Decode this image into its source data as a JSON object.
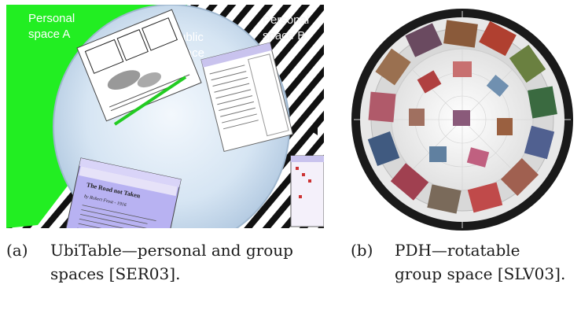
{
  "figure": {
    "panel_a": {
      "labels": {
        "personal_a_line1": "Personal",
        "personal_a_line2": "space A",
        "public_line1": "Public",
        "public_line2": "space",
        "personal_b_line1": "Personal",
        "personal_b_line2": "space B"
      },
      "window_title": "The Road not Taken",
      "window_author": "by Robert Frost - 1916",
      "colors": {
        "personal_a": "#22ee22",
        "public": "#cfe0f0",
        "stripes": "#111111"
      }
    },
    "panel_b": {
      "colors": {
        "rim": "#1a1a1a",
        "center": "#f4f4f4"
      }
    },
    "captions": {
      "a": {
        "label": "(a)",
        "line1": "UbiTable—personal and group",
        "line2": "spaces [SER03]."
      },
      "b": {
        "label": "(b)",
        "line1": "PDH—rotatable",
        "line2": "group space [SLV03]."
      }
    }
  }
}
